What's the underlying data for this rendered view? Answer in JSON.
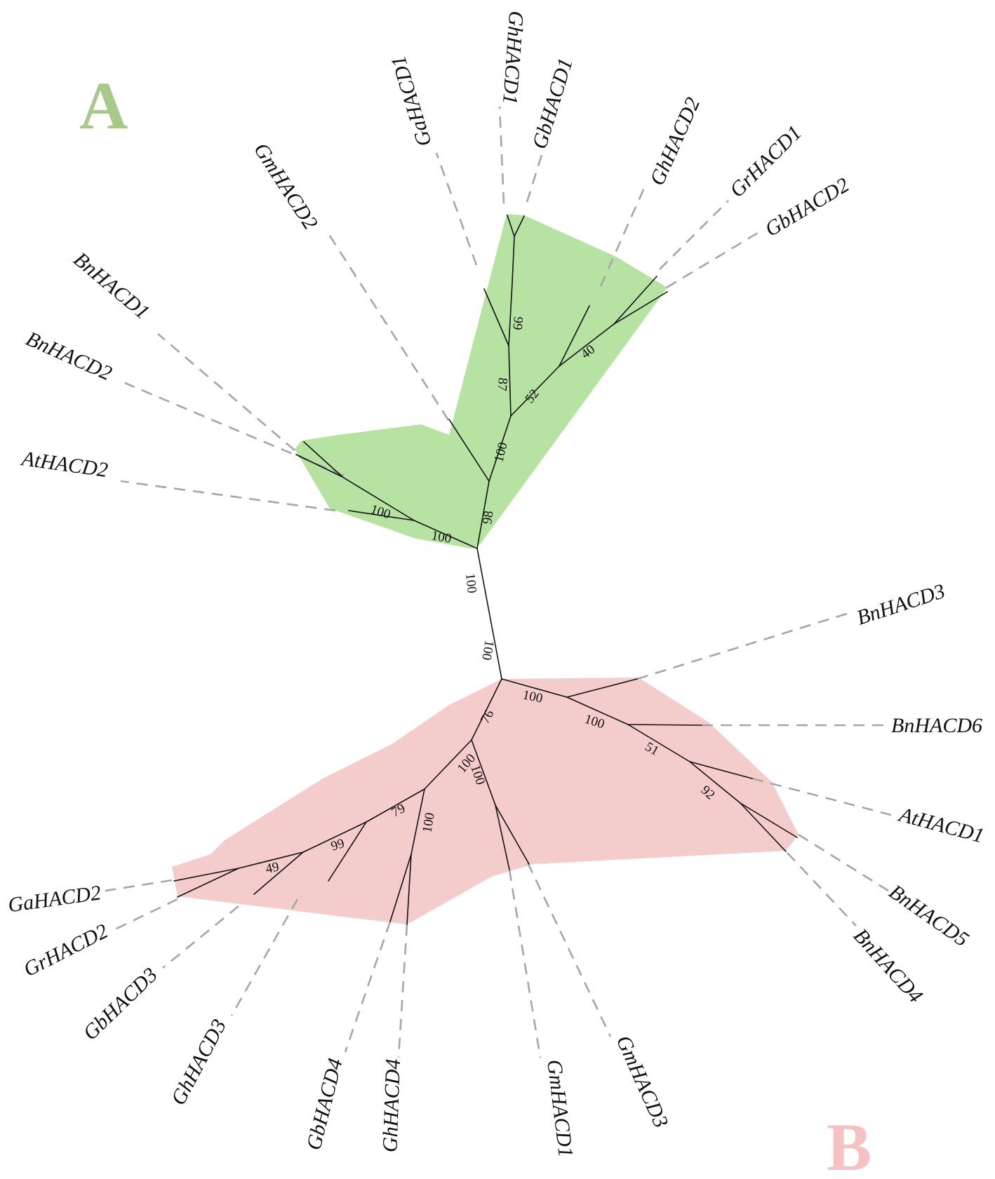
{
  "figure": {
    "type": "unrooted phylogenetic tree",
    "clades": [
      {
        "id": "A",
        "label": "A",
        "color": "#a8c98a",
        "fill": "#b2e19d"
      },
      {
        "id": "B",
        "label": "B",
        "color": "#f4c2c2",
        "fill": "#f3c9c9"
      }
    ],
    "leaves": {
      "gahacd1": "GaHACD1",
      "ghhacd1": "GhHACD1",
      "gbhacd1": "GbHACD1",
      "ghhacd2": "GhHACD2",
      "grhacd1": "GrHACD1",
      "gbhacd2": "GbHACD2",
      "gmhacd2": "GmHACD2",
      "bnhacd1": "BnHACD1",
      "bnhacd2": "BnHACD2",
      "athacd2": "AtHACD2",
      "bnhacd3": "BnHACD3",
      "bnhacd6": "BnHACD6",
      "athacd1": "AtHACD1",
      "bnhacd5": "BnHACD5",
      "bnhacd4": "BnHACD4",
      "gmhacd3": "GmHACD3",
      "gmhacd1": "GmHACD1",
      "ghhacd4": "GhHACD4",
      "gbhacd4": "GbHACD4",
      "ghhacd3": "GhHACD3",
      "gbhacd3": "GbHACD3",
      "grhacd2": "GrHACD2",
      "gahacd2": "GaHACD2"
    },
    "bootstrap": {
      "b99a": "99",
      "b87": "87",
      "b52": "52",
      "b40": "40",
      "b100a": "100",
      "b98": "98",
      "b100b": "100",
      "b100c": "100",
      "b100d": "100",
      "b100e": "100",
      "b100f": "100",
      "b100g": "100",
      "b51": "51",
      "b92": "92",
      "b76": "76",
      "b100h": "100",
      "b100i": "100",
      "b79": "79",
      "b100j": "100",
      "b99b": "99",
      "b49": "49"
    }
  }
}
